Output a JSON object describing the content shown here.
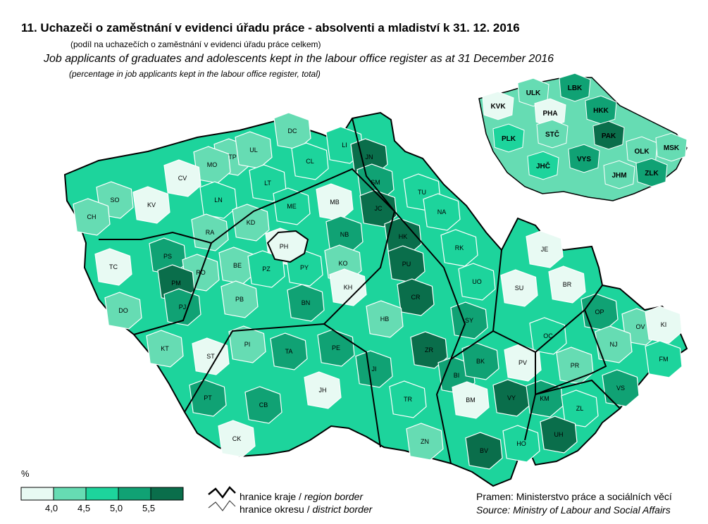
{
  "title": "11. Uchazeči o zaměstnání v evidenci úřadu práce - absolventi a mladiství k 31. 12. 2016",
  "subtitle_cz": "(podíl na uchazečích o zaměstnání v evidenci úřadu práce celkem)",
  "title_en": "Job applicants of graduates and adolescents kept in the labour office register as at 31 December 2016",
  "subtitle_en": "(percentage in job applicants kept in the labour office register, total)",
  "colors": {
    "class1": "#e8faf3",
    "class2": "#66dcb3",
    "class3": "#1dd49c",
    "class4": "#10a274",
    "class5": "#0a6e4b",
    "border": "#555555"
  },
  "legend": {
    "unit": "%",
    "breaks": [
      "4,0",
      "4,5",
      "5,0",
      "5,5"
    ],
    "region_border_cz": "hranice kraje /",
    "region_border_en": "region border",
    "district_border_cz": "hranice okresu /",
    "district_border_en": "district border"
  },
  "source_cz": "Pramen: Ministerstvo práce a sociálních věcí",
  "source_en": "Source: Ministry of Labour and Social Affairs",
  "districts": [
    {
      "code": "DC",
      "class": 2
    },
    {
      "code": "TP",
      "class": 2
    },
    {
      "code": "UL",
      "class": 2
    },
    {
      "code": "MO",
      "class": 2
    },
    {
      "code": "CV",
      "class": 1
    },
    {
      "code": "LT",
      "class": 3
    },
    {
      "code": "LN",
      "class": 3
    },
    {
      "code": "SO",
      "class": 2
    },
    {
      "code": "KV",
      "class": 1
    },
    {
      "code": "CH",
      "class": 2
    },
    {
      "code": "CL",
      "class": 3
    },
    {
      "code": "LI",
      "class": 3
    },
    {
      "code": "JN",
      "class": 5
    },
    {
      "code": "SM",
      "class": 4
    },
    {
      "code": "TU",
      "class": 3
    },
    {
      "code": "NA",
      "class": 3
    },
    {
      "code": "MB",
      "class": 1
    },
    {
      "code": "JC",
      "class": 5
    },
    {
      "code": "ME",
      "class": 3
    },
    {
      "code": "KD",
      "class": 2
    },
    {
      "code": "RA",
      "class": 2
    },
    {
      "code": "PH",
      "class": 1
    },
    {
      "code": "NB",
      "class": 4
    },
    {
      "code": "HK",
      "class": 5
    },
    {
      "code": "RK",
      "class": 3
    },
    {
      "code": "TC",
      "class": 1
    },
    {
      "code": "PS",
      "class": 4
    },
    {
      "code": "RO",
      "class": 2
    },
    {
      "code": "PM",
      "class": 5
    },
    {
      "code": "BE",
      "class": 2
    },
    {
      "code": "PZ",
      "class": 3
    },
    {
      "code": "PY",
      "class": 3
    },
    {
      "code": "KO",
      "class": 2
    },
    {
      "code": "PU",
      "class": 5
    },
    {
      "code": "KH",
      "class": 1
    },
    {
      "code": "DO",
      "class": 2
    },
    {
      "code": "PJ",
      "class": 4
    },
    {
      "code": "PB",
      "class": 2
    },
    {
      "code": "BN",
      "class": 4
    },
    {
      "code": "CR",
      "class": 5
    },
    {
      "code": "UO",
      "class": 3
    },
    {
      "code": "SY",
      "class": 4
    },
    {
      "code": "HB",
      "class": 2
    },
    {
      "code": "KT",
      "class": 2
    },
    {
      "code": "ST",
      "class": 1
    },
    {
      "code": "PI",
      "class": 2
    },
    {
      "code": "TA",
      "class": 4
    },
    {
      "code": "PE",
      "class": 4
    },
    {
      "code": "ZR",
      "class": 5
    },
    {
      "code": "JI",
      "class": 4
    },
    {
      "code": "PT",
      "class": 4
    },
    {
      "code": "CB",
      "class": 4
    },
    {
      "code": "JH",
      "class": 1
    },
    {
      "code": "TR",
      "class": 3
    },
    {
      "code": "CK",
      "class": 1
    },
    {
      "code": "BI",
      "class": 4
    },
    {
      "code": "BK",
      "class": 4
    },
    {
      "code": "BM",
      "class": 1
    },
    {
      "code": "VY",
      "class": 5
    },
    {
      "code": "BV",
      "class": 5
    },
    {
      "code": "HO",
      "class": 3
    },
    {
      "code": "ZN",
      "class": 2
    },
    {
      "code": "JE",
      "class": 1
    },
    {
      "code": "SU",
      "class": 1
    },
    {
      "code": "BR",
      "class": 1
    },
    {
      "code": "OP",
      "class": 4
    },
    {
      "code": "OV",
      "class": 2
    },
    {
      "code": "KI",
      "class": 1
    },
    {
      "code": "OC",
      "class": 3
    },
    {
      "code": "NJ",
      "class": 2
    },
    {
      "code": "FM",
      "class": 3
    },
    {
      "code": "PV",
      "class": 1
    },
    {
      "code": "PR",
      "class": 2
    },
    {
      "code": "KM",
      "class": 4
    },
    {
      "code": "VS",
      "class": 4
    },
    {
      "code": "ZL",
      "class": 3
    },
    {
      "code": "UH",
      "class": 5
    }
  ],
  "regions": [
    {
      "code": "KVK",
      "class": 1
    },
    {
      "code": "ULK",
      "class": 2
    },
    {
      "code": "LBK",
      "class": 4
    },
    {
      "code": "PHA",
      "class": 1
    },
    {
      "code": "HKK",
      "class": 4
    },
    {
      "code": "STČ",
      "class": 2
    },
    {
      "code": "PAK",
      "class": 5
    },
    {
      "code": "PLK",
      "class": 3
    },
    {
      "code": "VYS",
      "class": 4
    },
    {
      "code": "OLK",
      "class": 2
    },
    {
      "code": "MSK",
      "class": 2
    },
    {
      "code": "JHČ",
      "class": 3
    },
    {
      "code": "JHM",
      "class": 2
    },
    {
      "code": "ZLK",
      "class": 4
    }
  ]
}
